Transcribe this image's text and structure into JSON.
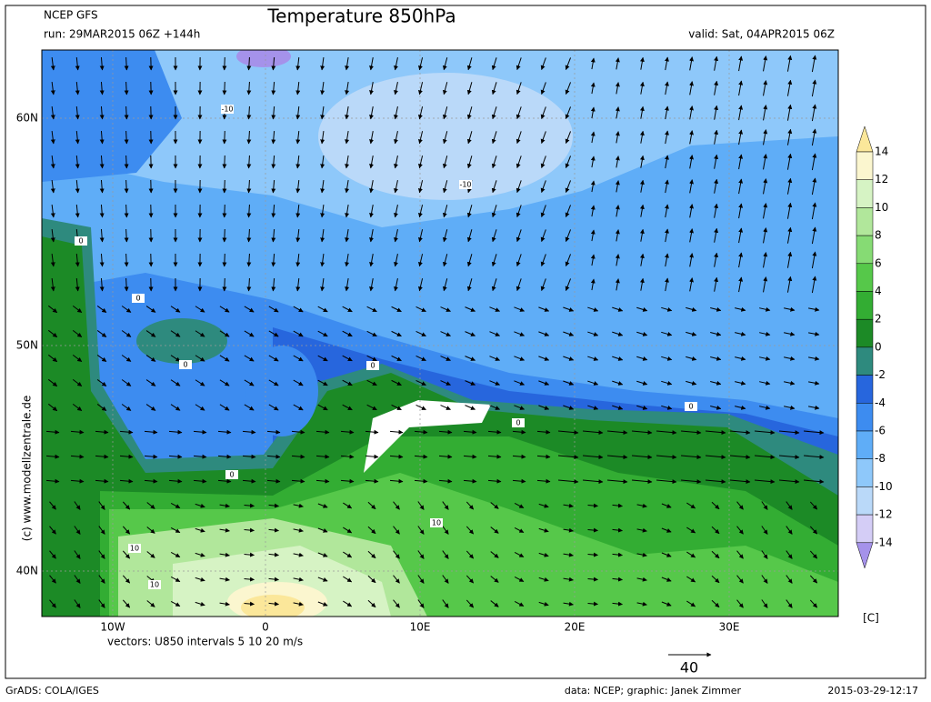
{
  "header": {
    "model": "NCEP GFS",
    "run": "run: 29MAR2015 06Z +144h",
    "title": "Temperature 850hPa",
    "valid": "valid: Sat, 04APR2015 06Z"
  },
  "axes": {
    "lat_labels": [
      "60N",
      "50N",
      "40N"
    ],
    "lon_labels": [
      "10W",
      "0",
      "10E",
      "20E",
      "30E"
    ]
  },
  "credit_left": "(c) www.modellzentrale.de",
  "vectors_note": "vectors: U850 intervals 5 10 20 m/s",
  "reference_vector": "40",
  "contour_labels": [
    "-10",
    "-10",
    "0",
    "0",
    "0",
    "0",
    "0",
    "0",
    "0",
    "10",
    "10",
    "10"
  ],
  "colorbar": {
    "unit": "[C]",
    "labels": [
      "14",
      "12",
      "10",
      "8",
      "6",
      "4",
      "2",
      "0",
      "-2",
      "-4",
      "-6",
      "-8",
      "-10",
      "-12",
      "-14"
    ],
    "band_colors": [
      "#fbe79a",
      "#fbf6cf",
      "#d6f3c4",
      "#b1e79b",
      "#86db74",
      "#56c84a",
      "#33ad33",
      "#1c8a26",
      "#2e8a7e",
      "#2766dd",
      "#3d8cf0",
      "#5fadf7",
      "#8ec8fa",
      "#bad9f9",
      "#d4cdf6",
      "#a592ea"
    ]
  },
  "footer": {
    "software": "GrADS: COLA/IGES",
    "credit": "data: NCEP; graphic: Janek Zimmer",
    "timestamp": "2015-03-29-12:17"
  }
}
